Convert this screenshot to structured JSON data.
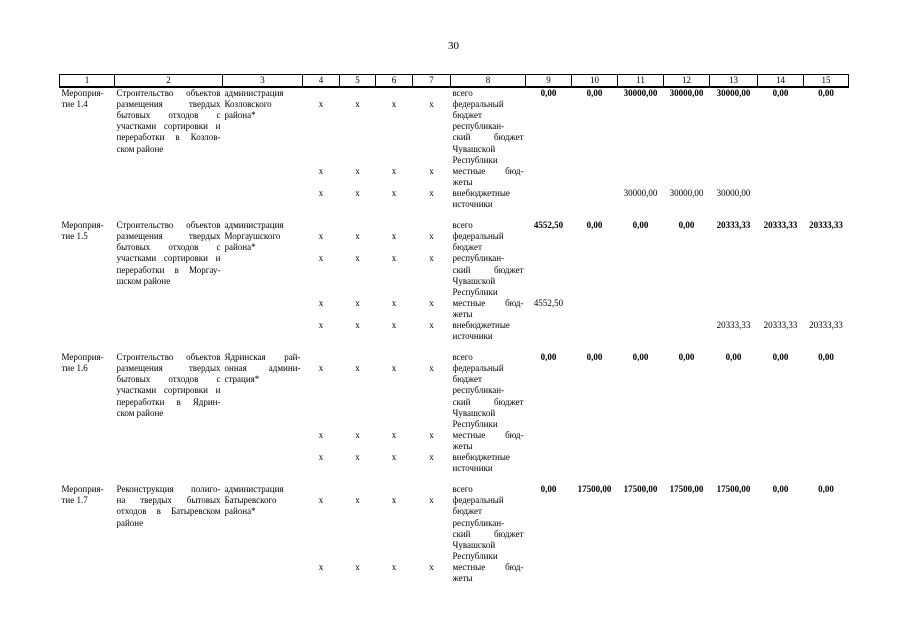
{
  "page_number": "30",
  "x_mark": "х",
  "table": {
    "header_columns": [
      "1",
      "2",
      "3",
      "4",
      "5",
      "6",
      "7",
      "8",
      "9",
      "10",
      "11",
      "12",
      "13",
      "14",
      "15"
    ],
    "blocks": [
      {
        "id": "Мероприя-\nтие 1.4",
        "description": "Строительство объектов\nразмещения твердых\nбытовых отходов с\nучастками сортировки и\nпереработки в Козлов-\nском районе",
        "executor": "администрация\nКозловского\nрайона*",
        "subrows": [
          {
            "source": "всего",
            "x": false,
            "bold": true,
            "values": [
              "0,00",
              "0,00",
              "30000,00",
              "30000,00",
              "30000,00",
              "0,00",
              "0,00"
            ]
          },
          {
            "source": "федеральный\nбюджет",
            "x": true,
            "bold": false,
            "values": [
              "",
              "",
              "",
              "",
              "",
              "",
              ""
            ]
          },
          {
            "source": "республикан-\nский бюджет\nЧувашской\nРеспублики",
            "x": false,
            "bold": false,
            "values": [
              "",
              "",
              "",
              "",
              "",
              "",
              ""
            ]
          },
          {
            "source": "местные бюд-\nжеты",
            "x": true,
            "bold": false,
            "values": [
              "",
              "",
              "",
              "",
              "",
              "",
              ""
            ]
          },
          {
            "source": "внебюджетные\nисточники",
            "x": true,
            "bold": false,
            "values": [
              "",
              "",
              "30000,00",
              "30000,00",
              "30000,00",
              "",
              ""
            ]
          }
        ]
      },
      {
        "id": "Мероприя-\nтие 1.5",
        "description": "Строительство объектов\nразмещения твердых\nбытовых отходов с\nучастками сортировки и\nпереработки в Моргау-\nшском районе",
        "executor": "администрация\nМоргаушского\nрайона*",
        "subrows": [
          {
            "source": "всего",
            "x": false,
            "bold": true,
            "values": [
              "4552,50",
              "0,00",
              "0,00",
              "0,00",
              "20333,33",
              "20333,33",
              "20333,33"
            ]
          },
          {
            "source": "федеральный\nбюджет",
            "x": true,
            "bold": false,
            "values": [
              "",
              "",
              "",
              "",
              "",
              "",
              ""
            ]
          },
          {
            "source": "республикан-\nский бюджет\nЧувашской\nРеспублики",
            "x": true,
            "bold": false,
            "values": [
              "",
              "",
              "",
              "",
              "",
              "",
              ""
            ]
          },
          {
            "source": "местные бюд-\nжеты",
            "x": true,
            "bold": false,
            "values": [
              "4552,50",
              "",
              "",
              "",
              "",
              "",
              ""
            ]
          },
          {
            "source": "внебюджетные\nисточники",
            "x": true,
            "bold": false,
            "values": [
              "",
              "",
              "",
              "",
              "20333,33",
              "20333,33",
              "20333,33"
            ]
          }
        ]
      },
      {
        "id": "Мероприя-\nтие 1.6",
        "description": "Строительство объектов\nразмещения твердых\nбытовых отходов с\nучастками сортировки и\nпереработки в Ядрин-\nском районе",
        "executor": "Ядринская рай-\nонная админи-\nстрация*",
        "subrows": [
          {
            "source": "всего",
            "x": false,
            "bold": true,
            "values": [
              "0,00",
              "0,00",
              "0,00",
              "0,00",
              "0,00",
              "0,00",
              "0,00"
            ]
          },
          {
            "source": "федеральный\nбюджет",
            "x": true,
            "bold": false,
            "values": [
              "",
              "",
              "",
              "",
              "",
              "",
              ""
            ]
          },
          {
            "source": "республикан-\nский бюджет\nЧувашской\nРеспублики",
            "x": false,
            "bold": false,
            "values": [
              "",
              "",
              "",
              "",
              "",
              "",
              ""
            ]
          },
          {
            "source": "местные бюд-\nжеты",
            "x": true,
            "bold": false,
            "values": [
              "",
              "",
              "",
              "",
              "",
              "",
              ""
            ]
          },
          {
            "source": "внебюджетные\nисточники",
            "x": true,
            "bold": false,
            "values": [
              "",
              "",
              "",
              "",
              "",
              "",
              ""
            ]
          }
        ]
      },
      {
        "id": "Мероприя-\nтие 1.7",
        "description": "Реконструкция полиго-\nна твердых бытовых\nотходов в Батыревском\nрайоне",
        "executor": "администрация\nБатыревского\nрайона*",
        "subrows": [
          {
            "source": "всего",
            "x": false,
            "bold": true,
            "values": [
              "0,00",
              "17500,00",
              "17500,00",
              "17500,00",
              "17500,00",
              "0,00",
              "0,00"
            ]
          },
          {
            "source": "федеральный\nбюджет",
            "x": true,
            "bold": false,
            "values": [
              "",
              "",
              "",
              "",
              "",
              "",
              ""
            ]
          },
          {
            "source": "республикан-\nский бюджет\nЧувашской\nРеспублики",
            "x": false,
            "bold": false,
            "values": [
              "",
              "",
              "",
              "",
              "",
              "",
              ""
            ]
          },
          {
            "source": "местные бюд-\nжеты",
            "x": true,
            "bold": false,
            "values": [
              "",
              "",
              "",
              "",
              "",
              "",
              ""
            ]
          }
        ]
      }
    ]
  }
}
